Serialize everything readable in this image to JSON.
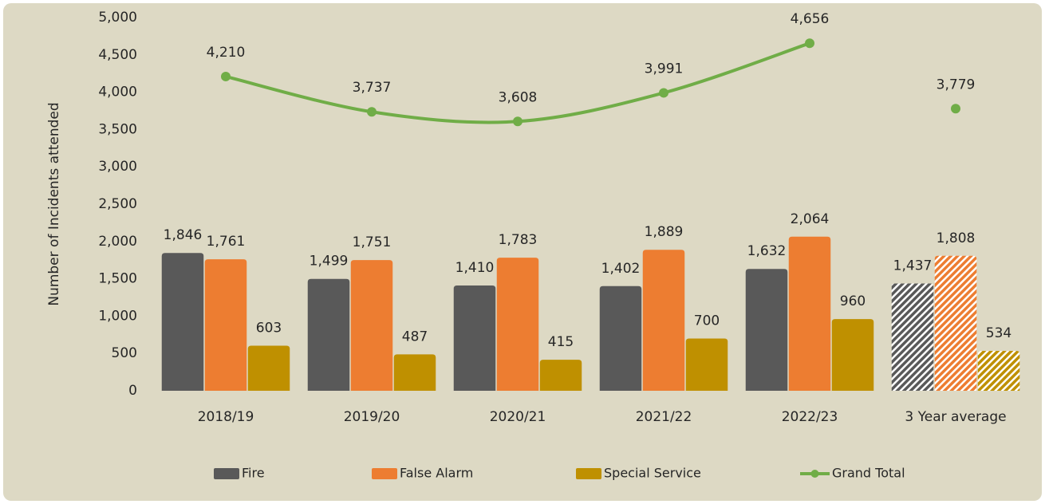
{
  "chart_data": {
    "type": "bar",
    "y_label": "Number of Incidents attended",
    "categories": [
      "2018/19",
      "2019/20",
      "2020/21",
      "2021/22",
      "2022/23",
      "3 Year average"
    ],
    "hatched_index": 5,
    "series": [
      {
        "name": "Fire",
        "type": "bar",
        "color": "#595959",
        "values": [
          1846,
          1499,
          1410,
          1402,
          1632,
          1437
        ],
        "value_labels": [
          "1,846",
          "1,499",
          "1,410",
          "1,402",
          "1,632",
          "1,437"
        ]
      },
      {
        "name": "False Alarm",
        "type": "bar",
        "color": "#ed7d31",
        "values": [
          1761,
          1751,
          1783,
          1889,
          2064,
          1808
        ],
        "value_labels": [
          "1,761",
          "1,751",
          "1,783",
          "1,889",
          "2,064",
          "1,808"
        ]
      },
      {
        "name": "Special Service",
        "type": "bar",
        "color": "#bf9000",
        "values": [
          603,
          487,
          415,
          700,
          960,
          534
        ]
      },
      {
        "name": "Grand Total",
        "type": "line",
        "color": "#70ad47",
        "values": [
          4210,
          3737,
          3608,
          3991,
          4656,
          3779
        ],
        "value_labels": [
          "4,210",
          "3,737",
          "3,608",
          "3,991",
          "4,656",
          "3,779"
        ]
      }
    ],
    "ylim": [
      0,
      5000
    ],
    "yticks": [
      0,
      500,
      {
        "value": 1000,
        "label": "1,000"
      },
      {
        "value": 1500,
        "label": "1,500"
      },
      {
        "value": 2000,
        "label": "2,000"
      },
      {
        "value": 2500,
        "label": "2,500"
      },
      {
        "value": 3000,
        "label": "3,000"
      },
      {
        "value": 3500,
        "label": "3,500"
      },
      {
        "value": 4000,
        "label": "4,000"
      },
      {
        "value": 4500,
        "label": "4,500"
      },
      {
        "value": 5000,
        "label": "5,000"
      }
    ],
    "grid": false,
    "legend": "bottom"
  }
}
